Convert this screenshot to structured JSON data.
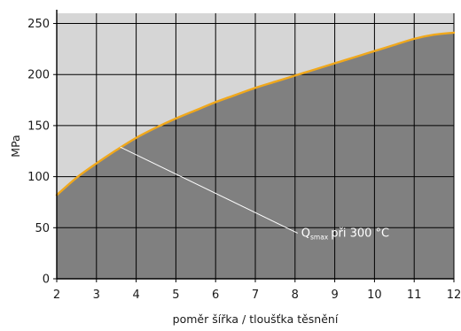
{
  "chart_data": {
    "type": "area",
    "title": "",
    "xlabel": "poměr šířka / tloušťka těsnění",
    "ylabel": "MPa",
    "xlim": [
      2,
      12
    ],
    "ylim": [
      0,
      260
    ],
    "x_ticks": [
      2,
      3,
      4,
      5,
      6,
      7,
      8,
      9,
      10,
      11,
      12
    ],
    "y_ticks": [
      0,
      50,
      100,
      150,
      200,
      250
    ],
    "grid": true,
    "series": [
      {
        "name": "Q smax při 300 °C",
        "x": [
          2,
          2.5,
          3,
          3.5,
          4,
          4.5,
          5,
          5.5,
          6,
          6.5,
          7,
          7.5,
          8,
          8.5,
          9,
          9.5,
          10,
          10.5,
          11,
          11.5,
          12
        ],
        "y": [
          82,
          99,
          113,
          126,
          138,
          148,
          157,
          165,
          173,
          180,
          187,
          193,
          199,
          205,
          211,
          217,
          223,
          229,
          235,
          239,
          241
        ]
      }
    ],
    "annotations": [
      {
        "text_main": "Q",
        "text_sub": "smax",
        "text_rest": "při 300 °C",
        "points_to": {
          "x": 3.6,
          "y": 129
        },
        "anchor": {
          "x": 8.2,
          "y": 49
        }
      }
    ],
    "colors": {
      "plot_background": "#d6d6d6",
      "area_fill": "#808080",
      "curve": "#f0a81c",
      "grid": "#000000",
      "annotation": "#ffffff"
    }
  }
}
